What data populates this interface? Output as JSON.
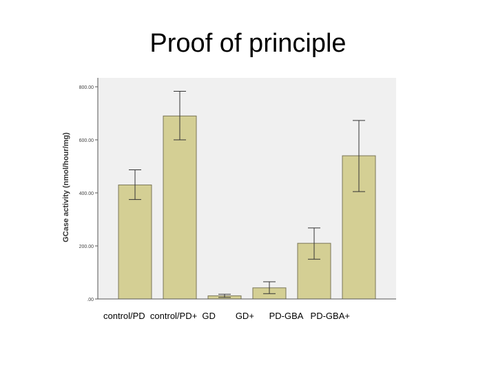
{
  "slide": {
    "title": "Proof of principle"
  },
  "chart_data": {
    "type": "bar",
    "title": "",
    "ylabel": "GCase activity (nmol/hour/mg)",
    "xlabel": "",
    "x_tick_text": "control/PD  control/PD+  GD        GD+      PD-GBA   PD-GBA+",
    "categories": [
      "control/PD",
      "control/PD+",
      "GD",
      "GD+",
      "PD-GBA",
      "PD-GBA+"
    ],
    "values": [
      430,
      690,
      12,
      42,
      210,
      540
    ],
    "error_low": [
      375,
      600,
      6,
      20,
      150,
      405
    ],
    "error_high": [
      487,
      783,
      18,
      65,
      268,
      673
    ],
    "ylim": [
      0,
      800
    ],
    "yticks": [
      "800.00",
      "600.00",
      "400.00",
      "200.00",
      ".00"
    ],
    "ytick_values": [
      800,
      600,
      400,
      200,
      0
    ],
    "grid": false,
    "colors": {
      "bar": "#d4cf94",
      "bar_stroke": "#7a7658",
      "plot_bg": "#f0f0f0",
      "error": "#333333"
    }
  }
}
